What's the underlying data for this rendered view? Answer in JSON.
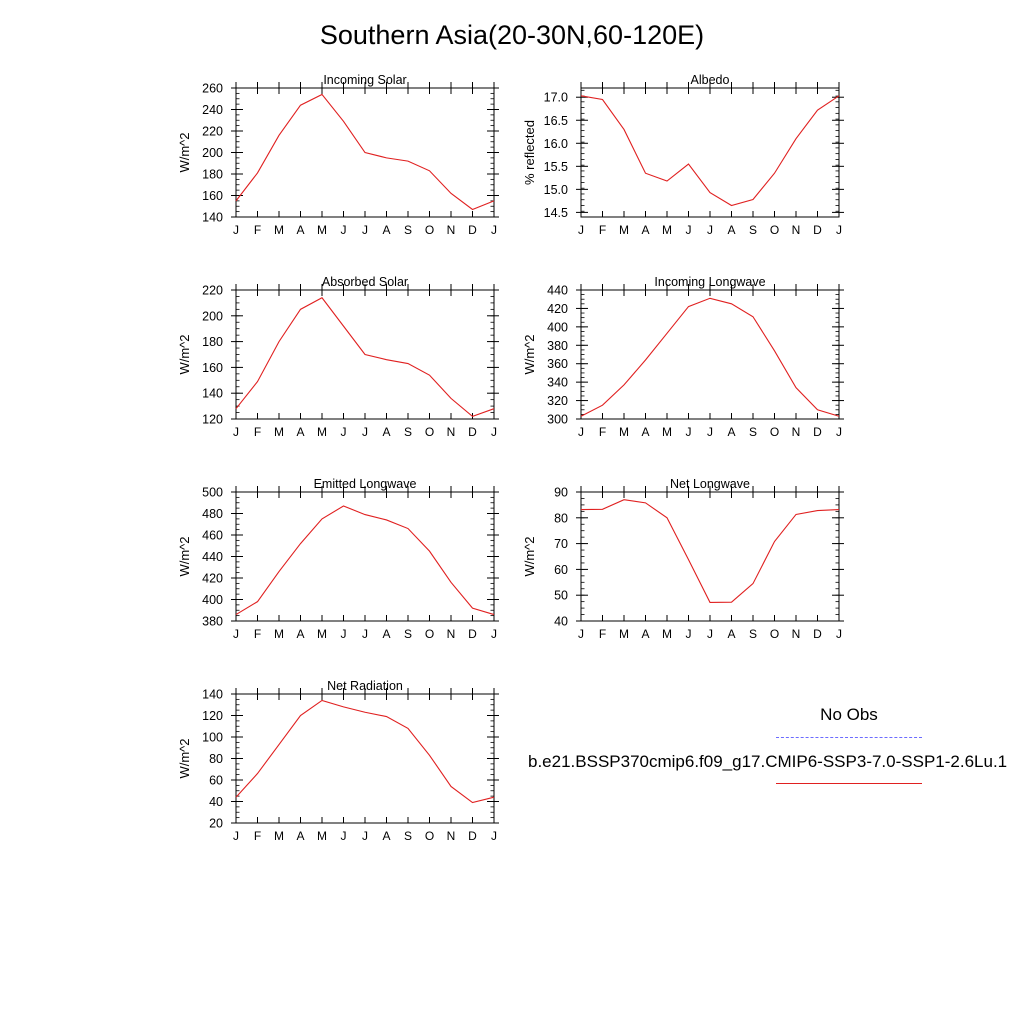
{
  "title": "Southern Asia(20-30N,60-120E)",
  "legend": {
    "obs_label": "No Obs",
    "obs_color": "#6b6bff",
    "case_label": "b.e21.BSSP370cmip6.f09_g17.CMIP6-SSP3-7.0-SSP1-2.6Lu.1",
    "case_color": "#e02020"
  },
  "chart_data": [
    {
      "type": "line",
      "title": "Incoming Solar",
      "ylabel": "W/m^2",
      "categories": [
        "J",
        "F",
        "M",
        "A",
        "M",
        "J",
        "J",
        "A",
        "S",
        "O",
        "N",
        "D",
        "J"
      ],
      "ylim": [
        140,
        260
      ],
      "yticks": [
        "140",
        "160",
        "180",
        "200",
        "220",
        "240",
        "260"
      ],
      "series": [
        {
          "values": [
            155,
            181,
            216,
            244,
            254,
            229,
            200,
            195,
            192,
            183,
            162,
            147,
            155
          ],
          "color": "#e02020"
        }
      ]
    },
    {
      "type": "line",
      "title": "Albedo",
      "ylabel": "% reflected",
      "categories": [
        "J",
        "F",
        "M",
        "A",
        "M",
        "J",
        "J",
        "A",
        "S",
        "O",
        "N",
        "D",
        "J"
      ],
      "ylim": [
        14.4,
        17.2
      ],
      "yticks": [
        "14.5",
        "15.0",
        "15.5",
        "16.0",
        "16.5",
        "17.0"
      ],
      "series": [
        {
          "values": [
            17.03,
            16.95,
            16.3,
            15.35,
            15.18,
            15.55,
            14.93,
            14.65,
            14.78,
            15.35,
            16.1,
            16.72,
            17.03
          ],
          "color": "#e02020"
        }
      ]
    },
    {
      "type": "line",
      "title": "Absorbed Solar",
      "ylabel": "W/m^2",
      "categories": [
        "J",
        "F",
        "M",
        "A",
        "M",
        "J",
        "J",
        "A",
        "S",
        "O",
        "N",
        "D",
        "J"
      ],
      "ylim": [
        120,
        220
      ],
      "yticks": [
        "120",
        "140",
        "160",
        "180",
        "200",
        "220"
      ],
      "series": [
        {
          "values": [
            128,
            149,
            180,
            205,
            214,
            192,
            170,
            166,
            163,
            154,
            136,
            122,
            128
          ],
          "color": "#e02020"
        }
      ]
    },
    {
      "type": "line",
      "title": "Incoming Longwave",
      "ylabel": "W/m^2",
      "categories": [
        "J",
        "F",
        "M",
        "A",
        "M",
        "J",
        "J",
        "A",
        "S",
        "O",
        "N",
        "D",
        "J"
      ],
      "ylim": [
        300,
        440
      ],
      "yticks": [
        "300",
        "320",
        "340",
        "360",
        "380",
        "400",
        "420",
        "440"
      ],
      "series": [
        {
          "values": [
            303,
            315,
            337,
            364,
            393,
            422,
            431,
            425,
            411,
            374,
            334,
            310,
            303
          ],
          "color": "#e02020"
        }
      ]
    },
    {
      "type": "line",
      "title": "Emitted Longwave",
      "ylabel": "W/m^2",
      "categories": [
        "J",
        "F",
        "M",
        "A",
        "M",
        "J",
        "J",
        "A",
        "S",
        "O",
        "N",
        "D",
        "J"
      ],
      "ylim": [
        380,
        500
      ],
      "yticks": [
        "380",
        "400",
        "420",
        "440",
        "460",
        "480",
        "500"
      ],
      "series": [
        {
          "values": [
            386,
            398,
            426,
            452,
            475,
            487,
            479,
            474,
            466,
            445,
            416,
            392,
            386
          ],
          "color": "#e02020"
        }
      ]
    },
    {
      "type": "line",
      "title": "Net Longwave",
      "ylabel": "W/m^2",
      "categories": [
        "J",
        "F",
        "M",
        "A",
        "M",
        "J",
        "J",
        "A",
        "S",
        "O",
        "N",
        "D",
        "J"
      ],
      "ylim": [
        40,
        90
      ],
      "yticks": [
        "40",
        "50",
        "60",
        "70",
        "80",
        "90"
      ],
      "series": [
        {
          "values": [
            83.2,
            83.3,
            87.0,
            85.8,
            80.0,
            63.8,
            47.2,
            47.3,
            54.5,
            70.8,
            81.3,
            82.8,
            83.2
          ],
          "color": "#e02020"
        }
      ]
    },
    {
      "type": "line",
      "title": "Net Radiation",
      "ylabel": "W/m^2",
      "categories": [
        "J",
        "F",
        "M",
        "A",
        "M",
        "J",
        "J",
        "A",
        "S",
        "O",
        "N",
        "D",
        "J"
      ],
      "ylim": [
        20,
        140
      ],
      "yticks": [
        "20",
        "40",
        "60",
        "80",
        "100",
        "120",
        "140"
      ],
      "series": [
        {
          "values": [
            44,
            66,
            93,
            120,
            134,
            128,
            123,
            119,
            108,
            83,
            54,
            39,
            44
          ],
          "color": "#e02020"
        }
      ]
    }
  ]
}
